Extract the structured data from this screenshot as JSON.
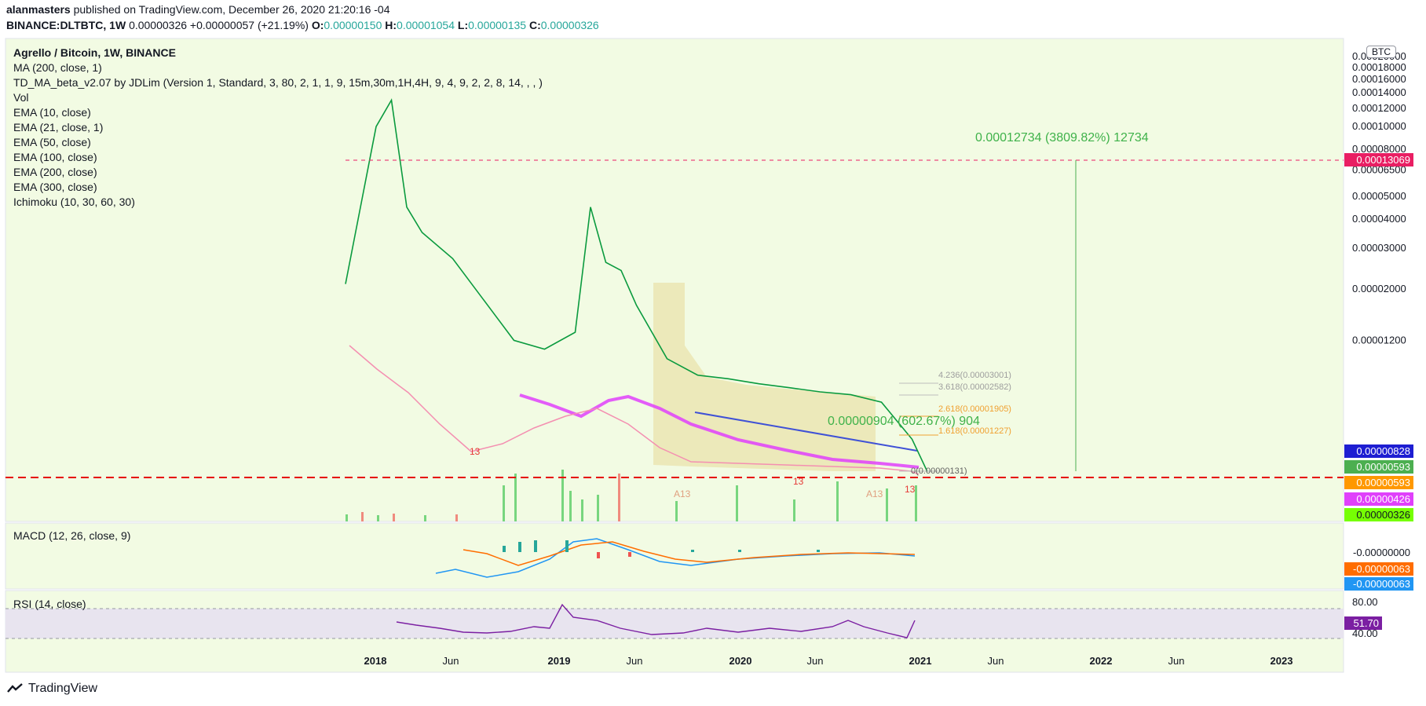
{
  "header": {
    "author": "alanmasters",
    "published_text": "published on TradingView.com, December 26, 2020 21:20:16 -04",
    "symbol": "BINANCE:DLTBTC, 1W",
    "last": "0.00000326",
    "change": "+0.00000057 (+21.19%)",
    "o_label": "O:",
    "o": "0.00000150",
    "h_label": "H:",
    "h": "0.00001054",
    "l_label": "L:",
    "l": "0.00000135",
    "c_label": "C:",
    "c": "0.00000326"
  },
  "legend": {
    "title": "Agrello / Bitcoin, 1W, BINANCE",
    "items": [
      "MA (200, close, 1)",
      "TD_MA_beta_v2.07 by JDLim (Version 1, Standard, 3, 80, 2, 1, 1, 9, 15m,30m,1H,4H, 9, 4, 9, 2, 2, 8, 14, , , )",
      "Vol",
      "EMA (10, close)",
      "EMA (21, close, 1)",
      "EMA (50, close)",
      "EMA (100, close)",
      "EMA (200, close)",
      "EMA (300, close)",
      "Ichimoku (10, 30, 60, 30)"
    ]
  },
  "currency_badge": "BTC",
  "annotations": {
    "range_big": "0.00012734 (3809.82%) 12734",
    "range_small": "0.00000904 (602.67%) 904",
    "fib_levels": [
      "4.236(0.00003001)",
      "3.618(0.00002582)",
      "2.618(0.00001905)",
      "1.618(0.00001227)",
      "0(0.00000131)"
    ],
    "td_labels": [
      "13",
      "13",
      "13",
      "A13",
      "A13"
    ]
  },
  "price_tags": [
    {
      "text": "0.00013069",
      "color": "#e91e63"
    },
    {
      "text": "0.00000828",
      "color": "#1e1ed2"
    },
    {
      "text": "0.00000593",
      "color": "#4caf50"
    },
    {
      "text": "0.00000593",
      "color": "#ff9800"
    },
    {
      "text": "0.00000426",
      "color": "#e040fb"
    },
    {
      "text": "0.00000326",
      "color": "#76ff03"
    }
  ],
  "macd": {
    "title": "MACD (12, 26, close, 9)",
    "tags": [
      {
        "text": "-0.00000000",
        "color": "#ffffff",
        "fg": "#131722"
      },
      {
        "text": "-0.00000063",
        "color": "#ff6d00",
        "fg": "#ffffff"
      },
      {
        "text": "-0.00000063",
        "color": "#2196f3",
        "fg": "#ffffff"
      }
    ]
  },
  "rsi": {
    "title": "RSI (14, close)",
    "value": "51.70",
    "value_color": "#7b1fa2",
    "ticks": [
      "80.00",
      "40.00"
    ]
  },
  "chart_data": {
    "type": "line",
    "title": "Agrello / Bitcoin, 1W, BINANCE",
    "y_scale": "log",
    "y_ticks": [
      "0.00020000",
      "0.00018000",
      "0.00016000",
      "0.00014000",
      "0.00012000",
      "0.00010000",
      "0.00008000",
      "0.00006500",
      "0.00005000",
      "0.00004000",
      "0.00003000",
      "0.00002000",
      "0.00001200"
    ],
    "x_ticks": [
      "2018",
      "Jun",
      "2019",
      "Jun",
      "2020",
      "Jun",
      "2021",
      "Jun",
      "2022",
      "Jun",
      "2023"
    ],
    "series": [
      {
        "x": [
          "2017-10",
          "2017-12",
          "2018-01",
          "2018-02",
          "2018-03",
          "2018-05",
          "2018-07",
          "2018-09",
          "2018-11",
          "2019-01",
          "2019-02",
          "2019-03",
          "2019-04",
          "2019-05",
          "2019-07",
          "2019-09",
          "2019-11",
          "2020-01",
          "2020-03",
          "2020-05",
          "2020-07",
          "2020-09",
          "2020-11",
          "2020-12"
        ],
        "values": [
          2.1e-05,
          0.0001,
          0.00013,
          4.5e-05,
          3.5e-05,
          2.7e-05,
          1.8e-05,
          1.2e-05,
          1.1e-05,
          1.3e-05,
          4.5e-05,
          2.6e-05,
          2.4e-05,
          1.7e-05,
          1e-05,
          8.5e-06,
          8.2e-06,
          7.8e-06,
          7.5e-06,
          7.2e-06,
          7e-06,
          6.5e-06,
          4.5e-06,
          3.26e-06
        ]
      }
    ],
    "horizontal_lines": [
      {
        "value": 0.00013069,
        "color": "#e91e63"
      },
      {
        "value": 3.26e-06,
        "color": "#ff0000"
      }
    ]
  }
}
